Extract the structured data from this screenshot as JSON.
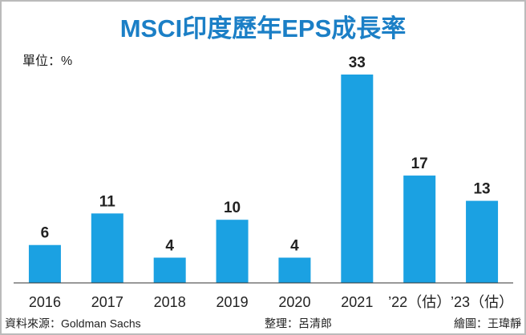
{
  "chart_data": {
    "type": "bar",
    "title": "MSCI印度歷年EPS成長率",
    "unit": "單位：%",
    "categories": [
      "2016",
      "2017",
      "2018",
      "2019",
      "2020",
      "2021",
      "’22（估）",
      "’23（估）"
    ],
    "values": [
      6,
      11,
      4,
      10,
      4,
      33,
      17,
      13
    ],
    "color": "#1ba1e2",
    "source": "資料來源：Goldman Sachs",
    "editor": "整理：呂清郎",
    "graphic": "繪圖：王瑋靜"
  }
}
